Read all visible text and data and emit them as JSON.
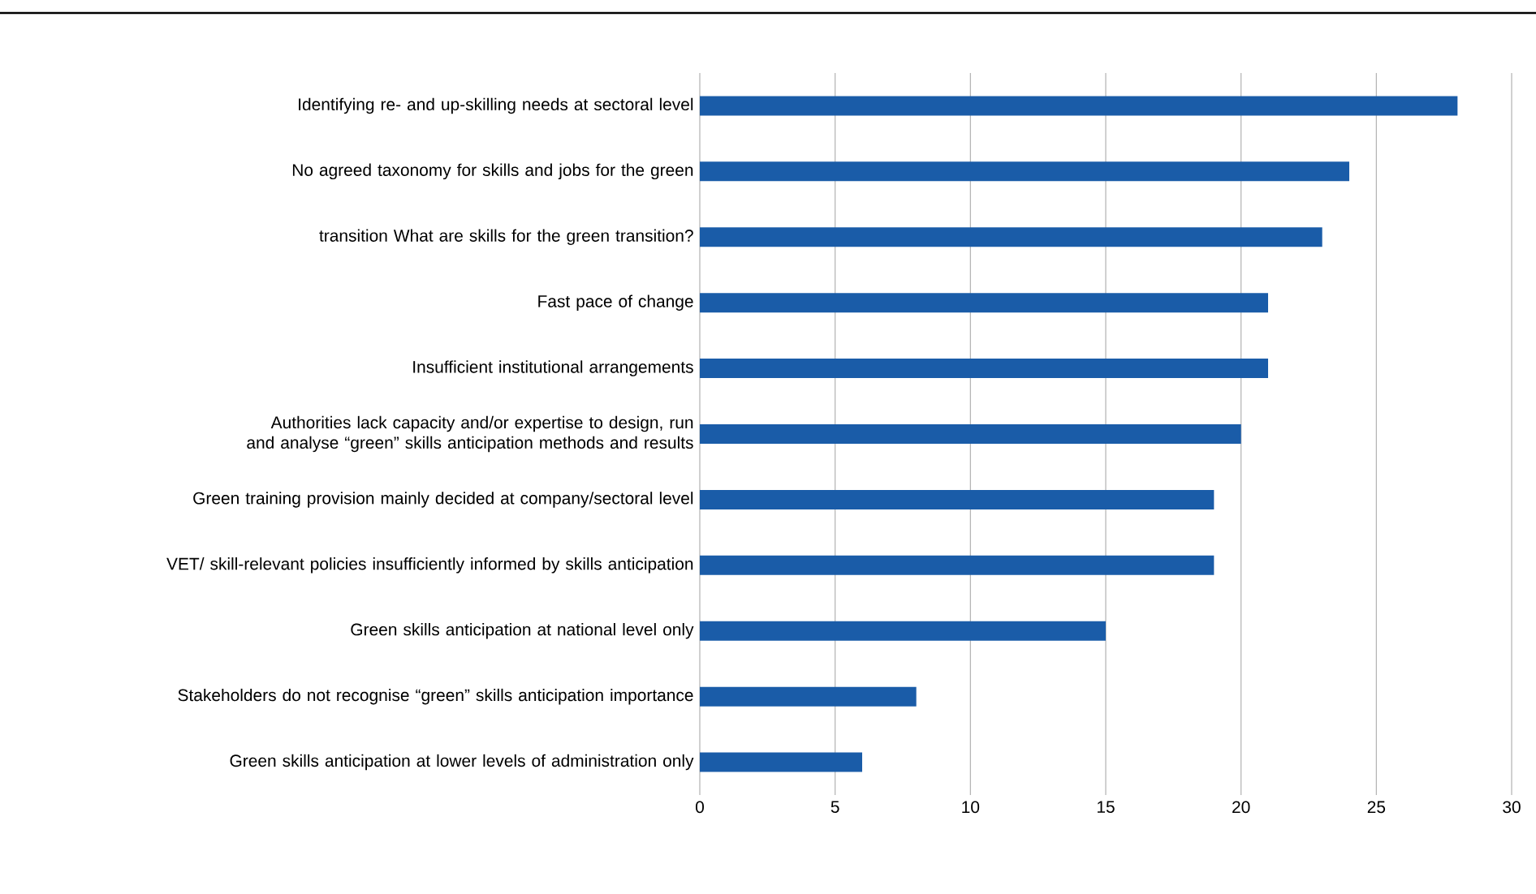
{
  "chart_data": {
    "type": "bar",
    "orientation": "horizontal",
    "categories": [
      "Identifying re- and up-skilling needs at sectoral level",
      "No agreed taxonomy for skills and jobs for the green",
      "transition What are skills for the green transition?",
      "Fast pace of change",
      "Insufficient institutional arrangements",
      "Authorities lack capacity and/or expertise to design, run and analyse “green” skills anticipation methods and results",
      "Green training provision mainly decided at company/sectoral level",
      "VET/ skill-relevant policies insufficiently informed by skills anticipation",
      "Green skills anticipation at national level only",
      "Stakeholders do not recognise “green” skills anticipation importance",
      "Green skills anticipation at lower levels of administration only"
    ],
    "values": [
      28,
      24,
      23,
      21,
      21,
      20,
      19,
      19,
      15,
      8,
      6
    ],
    "color": "#1a5ca8",
    "xlim": [
      0,
      30
    ],
    "xticks": [
      0,
      5,
      10,
      15,
      20,
      25,
      30
    ],
    "grid": "x"
  }
}
